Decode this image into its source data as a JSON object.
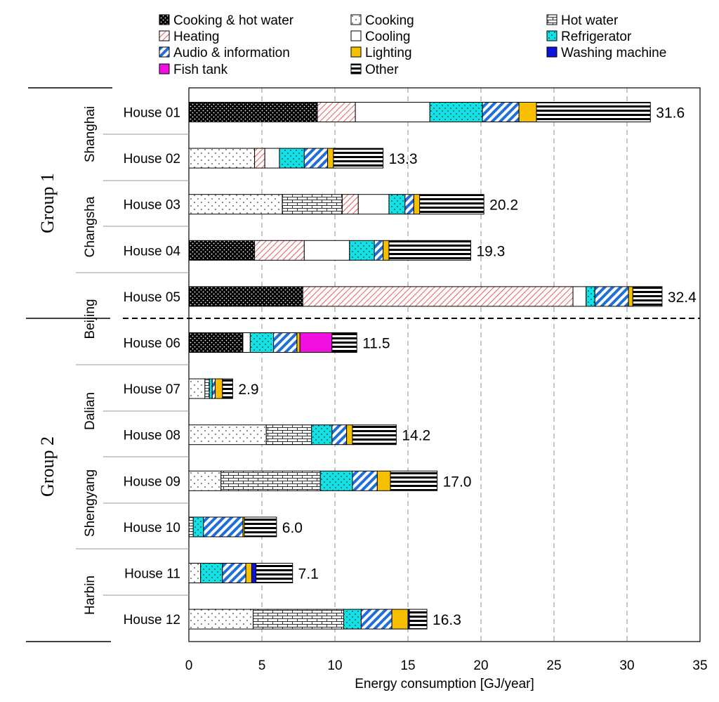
{
  "chart_data": {
    "type": "bar",
    "orientation": "horizontal",
    "stacked": true,
    "xlabel": "Energy consumption [GJ/year]",
    "xlim": [
      0,
      35
    ],
    "xticks": [
      0,
      5,
      10,
      15,
      20,
      25,
      30,
      35
    ],
    "grid": "vertical dashed",
    "legend_position": "top",
    "categories": [
      "House 01",
      "House 02",
      "House 03",
      "House 04",
      "House 05",
      "House 06",
      "House 07",
      "House 08",
      "House 09",
      "House 10",
      "House 11",
      "House 12"
    ],
    "cities": [
      {
        "name": "Shanghai",
        "houses": [
          "House 01",
          "House 02"
        ]
      },
      {
        "name": "Changsha",
        "houses": [
          "House 03",
          "House 04"
        ]
      },
      {
        "name": "Beijing",
        "houses": [
          "House 05",
          "House 06"
        ]
      },
      {
        "name": "Dalian",
        "houses": [
          "House 07",
          "House 08"
        ]
      },
      {
        "name": "Shengyang",
        "houses": [
          "House 09",
          "House 10"
        ]
      },
      {
        "name": "Harbin",
        "houses": [
          "House 11",
          "House 12"
        ]
      }
    ],
    "groups": [
      {
        "name": "Group 1",
        "houses": [
          "House 01",
          "House 02",
          "House 03",
          "House 04",
          "House 05"
        ]
      },
      {
        "name": "Group 2",
        "houses": [
          "House 06",
          "House 07",
          "House 08",
          "House 09",
          "House 10",
          "House 11",
          "House 12"
        ]
      }
    ],
    "totals": [
      "31.6",
      "13.3",
      "20.2",
      "19.3",
      "32.4",
      "11.5",
      "2.9",
      "14.2",
      "17.0",
      "6.0",
      "7.1",
      "16.3"
    ],
    "series": [
      {
        "name": "Cooking & hot water",
        "pattern": "black-dots",
        "values": [
          8.8,
          0,
          0,
          4.5,
          7.8,
          3.7,
          0,
          0,
          0,
          0,
          0,
          0
        ]
      },
      {
        "name": "Cooking",
        "pattern": "sparse-dots",
        "values": [
          0,
          4.5,
          6.4,
          0,
          0,
          0,
          1.1,
          5.3,
          2.2,
          0,
          0.8,
          4.4
        ]
      },
      {
        "name": "Hot water",
        "pattern": "bricks",
        "values": [
          0,
          0,
          4.1,
          0,
          0,
          0,
          0.3,
          3.1,
          6.8,
          0.3,
          0,
          6.2
        ]
      },
      {
        "name": "Heating",
        "pattern": "red-hatch",
        "values": [
          2.6,
          0.7,
          1.1,
          3.4,
          18.5,
          0,
          0,
          0,
          0,
          0,
          0,
          0
        ]
      },
      {
        "name": "Cooling",
        "pattern": "white",
        "values": [
          5.1,
          1.0,
          2.1,
          3.1,
          0.9,
          0.5,
          0,
          0,
          0,
          0,
          0,
          0
        ]
      },
      {
        "name": "Refrigerator",
        "pattern": "cyan-dots",
        "values": [
          3.6,
          1.7,
          1.1,
          1.7,
          0.6,
          1.6,
          0.2,
          1.4,
          2.2,
          0.7,
          1.5,
          1.2
        ]
      },
      {
        "name": "Audio & information",
        "pattern": "blue-hatch",
        "values": [
          2.5,
          1.6,
          0.6,
          0.6,
          2.3,
          1.6,
          0.2,
          1.0,
          1.7,
          2.7,
          1.6,
          2.1
        ]
      },
      {
        "name": "Lighting",
        "pattern": "yellow",
        "values": [
          1.2,
          0.4,
          0.4,
          0.4,
          0.3,
          0.2,
          0.5,
          0.4,
          0.9,
          0.1,
          0.4,
          1.1
        ]
      },
      {
        "name": "Washing machine",
        "pattern": "blue",
        "values": [
          0,
          0,
          0,
          0,
          0,
          0,
          0,
          0,
          0,
          0,
          0.3,
          0.1
        ]
      },
      {
        "name": "Fish tank",
        "pattern": "magenta",
        "values": [
          0,
          0,
          0,
          0,
          0,
          2.2,
          0,
          0,
          0,
          0,
          0,
          0
        ]
      },
      {
        "name": "Other",
        "pattern": "stripes",
        "values": [
          7.8,
          3.4,
          4.4,
          5.6,
          2.0,
          1.7,
          0.7,
          3.0,
          3.2,
          2.2,
          2.5,
          1.2
        ]
      }
    ],
    "legend_order": [
      "Cooking & hot water",
      "Cooking",
      "Hot water",
      "Heating",
      "Cooling",
      "Refrigerator",
      "Audio & information",
      "Lighting",
      "Washing machine",
      "Fish tank",
      "Other"
    ]
  }
}
